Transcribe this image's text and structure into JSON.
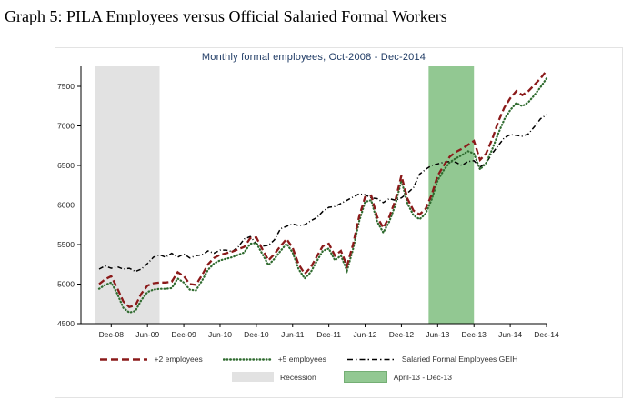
{
  "page": {
    "title": "Graph 5: PILA Employees versus Official Salaried Formal Workers"
  },
  "chart": {
    "subtitle": "Monthly formal employees, Oct-2008 - Dec-2014"
  },
  "colors": {
    "plus2": "#8b1a1a",
    "plus5": "#2f6b2f",
    "geih": "#000000",
    "recession_band": "#e2e2e2",
    "highlight_band": "#92c892",
    "highlight_band_border": "#74ae74",
    "subtitle_text": "#1e3a64",
    "axis": "#000000",
    "tick_text": "#222222"
  },
  "legend": {
    "series": [
      {
        "label": "+2 employees"
      },
      {
        "label": "+5 employees"
      },
      {
        "label": "Salaried Formal Employees GEIH"
      }
    ],
    "bands": [
      {
        "label": "Recession"
      },
      {
        "label": "April-13 - Dec-13"
      }
    ]
  },
  "chart_data": {
    "type": "line",
    "title": "Monthly formal employees, Oct-2008 - Dec-2014",
    "x_unit": "month",
    "x_start": "Oct-2008",
    "x_end": "Dec-2014",
    "x_tick_labels": [
      "Dec-08",
      "Jun-09",
      "Dec-09",
      "Jun-10",
      "Dec-10",
      "Jun-11",
      "Dec-11",
      "Jun-12",
      "Dec-12",
      "Jun-13",
      "Dec-13",
      "Jun-14",
      "Dec-14"
    ],
    "y_ticks": [
      4500,
      5000,
      5500,
      6000,
      6500,
      7000,
      7500
    ],
    "ylim": [
      4500,
      7730
    ],
    "grid": false,
    "legend_position": "bottom",
    "series": [
      {
        "name": "+2 employees",
        "values": [
          5000,
          5060,
          5100,
          4950,
          4780,
          4710,
          4730,
          4880,
          4980,
          5010,
          5020,
          5020,
          5030,
          5150,
          5100,
          5000,
          4990,
          5110,
          5250,
          5330,
          5370,
          5390,
          5410,
          5440,
          5470,
          5580,
          5590,
          5440,
          5300,
          5380,
          5480,
          5570,
          5460,
          5250,
          5130,
          5210,
          5350,
          5480,
          5510,
          5360,
          5420,
          5230,
          5500,
          5850,
          6100,
          6120,
          5850,
          5710,
          5850,
          6060,
          6370,
          6080,
          5930,
          5880,
          5950,
          6130,
          6370,
          6500,
          6610,
          6670,
          6710,
          6760,
          6810,
          6570,
          6650,
          6830,
          7050,
          7230,
          7350,
          7440,
          7390,
          7440,
          7520,
          7600,
          7700
        ]
      },
      {
        "name": "+5 employees",
        "values": [
          4940,
          4990,
          5020,
          4880,
          4700,
          4640,
          4660,
          4800,
          4900,
          4930,
          4940,
          4940,
          4950,
          5070,
          5020,
          4930,
          4920,
          5040,
          5180,
          5260,
          5300,
          5320,
          5340,
          5370,
          5400,
          5510,
          5520,
          5380,
          5240,
          5320,
          5420,
          5510,
          5400,
          5190,
          5070,
          5150,
          5290,
          5420,
          5450,
          5300,
          5360,
          5170,
          5440,
          5790,
          6040,
          6060,
          5790,
          5650,
          5790,
          6000,
          6310,
          6020,
          5870,
          5820,
          5890,
          6070,
          6310,
          6440,
          6540,
          6590,
          6630,
          6680,
          6650,
          6450,
          6530,
          6700,
          6900,
          7080,
          7200,
          7290,
          7250,
          7300,
          7390,
          7490,
          7600
        ]
      },
      {
        "name": "Salaried Formal Employees GEIH",
        "values": [
          5190,
          5230,
          5200,
          5220,
          5190,
          5200,
          5160,
          5190,
          5260,
          5340,
          5370,
          5340,
          5390,
          5340,
          5380,
          5330,
          5360,
          5370,
          5420,
          5390,
          5430,
          5430,
          5410,
          5470,
          5570,
          5600,
          5510,
          5480,
          5490,
          5560,
          5700,
          5730,
          5760,
          5740,
          5750,
          5800,
          5840,
          5920,
          5970,
          5980,
          6020,
          6060,
          6100,
          6140,
          6130,
          6090,
          6080,
          6030,
          6080,
          6060,
          6090,
          6150,
          6220,
          6390,
          6450,
          6500,
          6520,
          6540,
          6550,
          6540,
          6500,
          6550,
          6560,
          6480,
          6530,
          6650,
          6750,
          6850,
          6890,
          6880,
          6870,
          6900,
          6990,
          7090,
          7140
        ]
      }
    ],
    "bands": [
      {
        "name": "Recession",
        "color": "recession_band",
        "from_month": -0.7,
        "to_month": 10
      },
      {
        "name": "April-13 - Dec-13",
        "color": "highlight_band",
        "from_month": 54.5,
        "to_month": 62
      }
    ]
  }
}
